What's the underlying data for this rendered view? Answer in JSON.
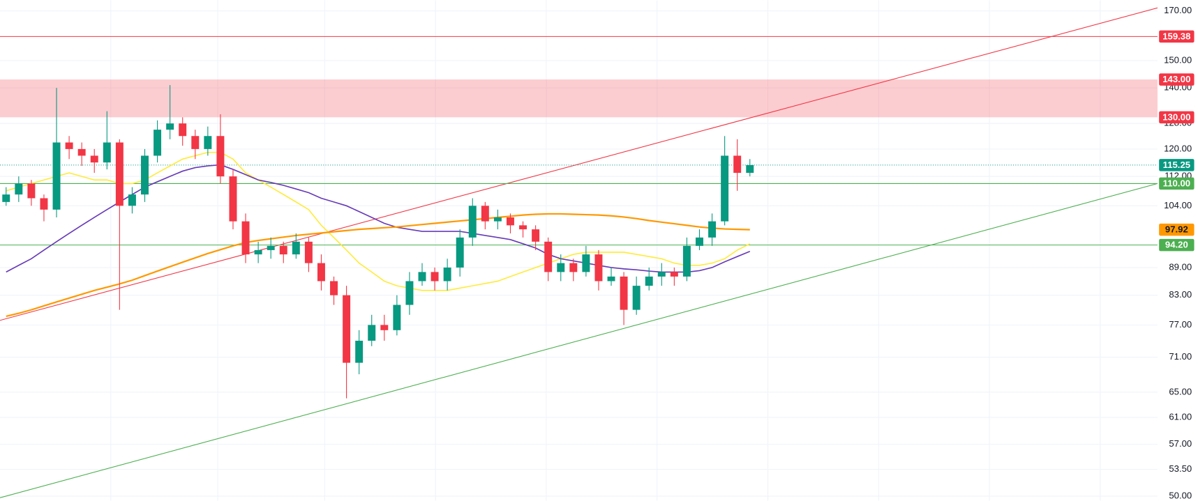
{
  "chart_data": {
    "type": "candlestick",
    "log_scale": true,
    "grid": true,
    "ylim": [
      50,
      170
    ],
    "yticks": [
      {
        "value": 170,
        "label": "170.00"
      },
      {
        "value": 150,
        "label": "150.00"
      },
      {
        "value": 140,
        "label": "140.00"
      },
      {
        "value": 128,
        "label": "128.00"
      },
      {
        "value": 120,
        "label": "120.00"
      },
      {
        "value": 112,
        "label": "112.00"
      },
      {
        "value": 104,
        "label": "104.00"
      },
      {
        "value": 89,
        "label": "89.00"
      },
      {
        "value": 83,
        "label": "83.00"
      },
      {
        "value": 77,
        "label": "77.00"
      },
      {
        "value": 71,
        "label": "71.00"
      },
      {
        "value": 65,
        "label": "65.00"
      },
      {
        "value": 61,
        "label": "61.00"
      },
      {
        "value": 57,
        "label": "57.00"
      },
      {
        "value": 53.5,
        "label": "53.50"
      },
      {
        "value": 50,
        "label": "50.00"
      }
    ],
    "up_color": "#089981",
    "down_color": "#f23645",
    "open": [
      105,
      107,
      110,
      106,
      103,
      122,
      120,
      118,
      116,
      122,
      104,
      107,
      118,
      126,
      128,
      124,
      120,
      124,
      112,
      100,
      92,
      93,
      94,
      92,
      95,
      90,
      86,
      83,
      70,
      74,
      77,
      76,
      81,
      86,
      88,
      86,
      89,
      96,
      104,
      100,
      101,
      99,
      98,
      95,
      88,
      90,
      88,
      92,
      86,
      87,
      80,
      85,
      87,
      88,
      87,
      94,
      96,
      100,
      118,
      113
    ],
    "high": [
      109,
      112,
      111,
      107,
      140,
      124,
      122,
      120,
      132,
      123,
      109,
      120,
      129,
      141,
      130,
      126,
      127,
      131,
      114,
      102,
      95,
      96,
      95,
      97,
      96,
      92,
      87,
      85,
      76,
      79,
      79,
      83,
      88,
      90,
      89,
      91,
      98,
      106,
      105,
      103,
      102,
      100,
      99,
      96,
      92,
      91,
      94,
      93,
      89,
      88,
      87,
      89,
      90,
      89,
      96,
      98,
      102,
      124,
      123,
      117
    ],
    "low": [
      104,
      105,
      104,
      100,
      101,
      117,
      115,
      113,
      114,
      80,
      102,
      105,
      116,
      123,
      121,
      117,
      118,
      110,
      98,
      90,
      90,
      91,
      90,
      91,
      88,
      84,
      81,
      64,
      68,
      73,
      74,
      75,
      79,
      85,
      84,
      84,
      87,
      94,
      98,
      98,
      97,
      96,
      93,
      86,
      86,
      86,
      87,
      84,
      85,
      77,
      79,
      84,
      85,
      85,
      86,
      93,
      94,
      99,
      108,
      112
    ],
    "close": [
      107,
      110,
      106,
      103,
      122,
      120,
      118,
      116,
      122,
      104,
      107,
      118,
      126,
      128,
      124,
      120,
      124,
      112,
      100,
      92,
      93,
      94,
      92,
      95,
      90,
      86,
      83,
      70,
      74,
      77,
      76,
      81,
      86,
      88,
      86,
      89,
      96,
      104,
      100,
      101,
      99,
      98,
      95,
      88,
      90,
      88,
      92,
      86,
      87,
      80,
      85,
      87,
      88,
      87,
      94,
      96,
      100,
      118,
      113,
      115.25
    ],
    "series": [
      {
        "color": "#ffeb3b",
        "values": [
          108,
          109,
          110,
          111,
          112,
          113,
          112,
          111,
          111,
          110,
          110,
          111,
          113,
          115,
          117,
          118,
          119,
          119,
          117,
          113,
          111,
          109,
          107,
          105,
          103,
          99,
          96,
          93,
          90,
          88,
          86,
          85,
          84.5,
          84,
          84,
          84,
          84.5,
          85,
          85.5,
          86,
          87,
          88,
          89,
          90,
          91,
          92,
          92.5,
          92.5,
          92.5,
          92.5,
          92,
          91.5,
          91,
          90,
          89.5,
          89.5,
          90,
          91,
          93,
          94.5
        ]
      },
      {
        "color": "#673ab7",
        "values": [
          88,
          89.5,
          91,
          93,
          95,
          97,
          99,
          101,
          103,
          105,
          107,
          109,
          110.5,
          112,
          113.5,
          114.5,
          115,
          115.3,
          114,
          112.5,
          111,
          110.3,
          109.5,
          108.5,
          107.5,
          106,
          105,
          104,
          102.5,
          101,
          99.5,
          98.5,
          98,
          97.5,
          97.5,
          97.5,
          97.5,
          97,
          96.5,
          96,
          95.5,
          94.5,
          93.5,
          92,
          91,
          90.5,
          90,
          89.5,
          89,
          88.7,
          88.5,
          88.2,
          88,
          88,
          88,
          88.3,
          89,
          90.3,
          91.5,
          92.7
        ]
      },
      {
        "color": "#ff9800",
        "values": [
          78.7,
          79.3,
          80,
          80.8,
          81.6,
          82.4,
          83.2,
          84,
          84.7,
          85.4,
          86.2,
          87.2,
          88.2,
          89.2,
          90.2,
          91.2,
          92.2,
          93.1,
          94,
          94.8,
          95.3,
          95.7,
          96.1,
          96.5,
          96.8,
          97.1,
          97.4,
          97.7,
          98,
          98.2,
          98.4,
          98.6,
          98.9,
          99.2,
          99.5,
          99.8,
          100.1,
          100.4,
          100.7,
          101,
          101.3,
          101.6,
          101.8,
          101.9,
          101.9,
          101.8,
          101.7,
          101.6,
          101.4,
          101.1,
          100.7,
          100.2,
          99.8,
          99.4,
          99,
          98.6,
          98.3,
          98.1,
          98,
          97.92
        ]
      }
    ],
    "zone": {
      "low": 130,
      "high": 143,
      "color": "rgba(242,54,69,0.25)"
    },
    "trendlines": [
      {
        "color": "#f23645",
        "start": 77.9,
        "end": 171.3
      },
      {
        "color": "#4caf50",
        "start": 49.8,
        "end": 110
      }
    ],
    "levels": [
      {
        "value": 159.38,
        "label": "159.38",
        "color": "#f23645",
        "text_color": "#ffffff",
        "line": "solid"
      },
      {
        "value": 143,
        "label": "143.00",
        "color": "#f23645",
        "text_color": "#ffffff",
        "line": "none"
      },
      {
        "value": 130,
        "label": "130.00",
        "color": "#f23645",
        "text_color": "#ffffff",
        "line": "none"
      },
      {
        "value": 115.25,
        "label": "115.25",
        "color": "#089981",
        "text_color": "#ffffff",
        "line": "dotted"
      },
      {
        "value": 110,
        "label": "110.00",
        "color": "#4caf50",
        "text_color": "#ffffff",
        "line": "solid"
      },
      {
        "value": 97.92,
        "label": "97.92",
        "color": "#ff9800",
        "text_color": "#131722",
        "line": "none"
      },
      {
        "value": 94.2,
        "label": "94.20",
        "color": "#4caf50",
        "text_color": "#ffffff",
        "line": "solid"
      }
    ]
  }
}
